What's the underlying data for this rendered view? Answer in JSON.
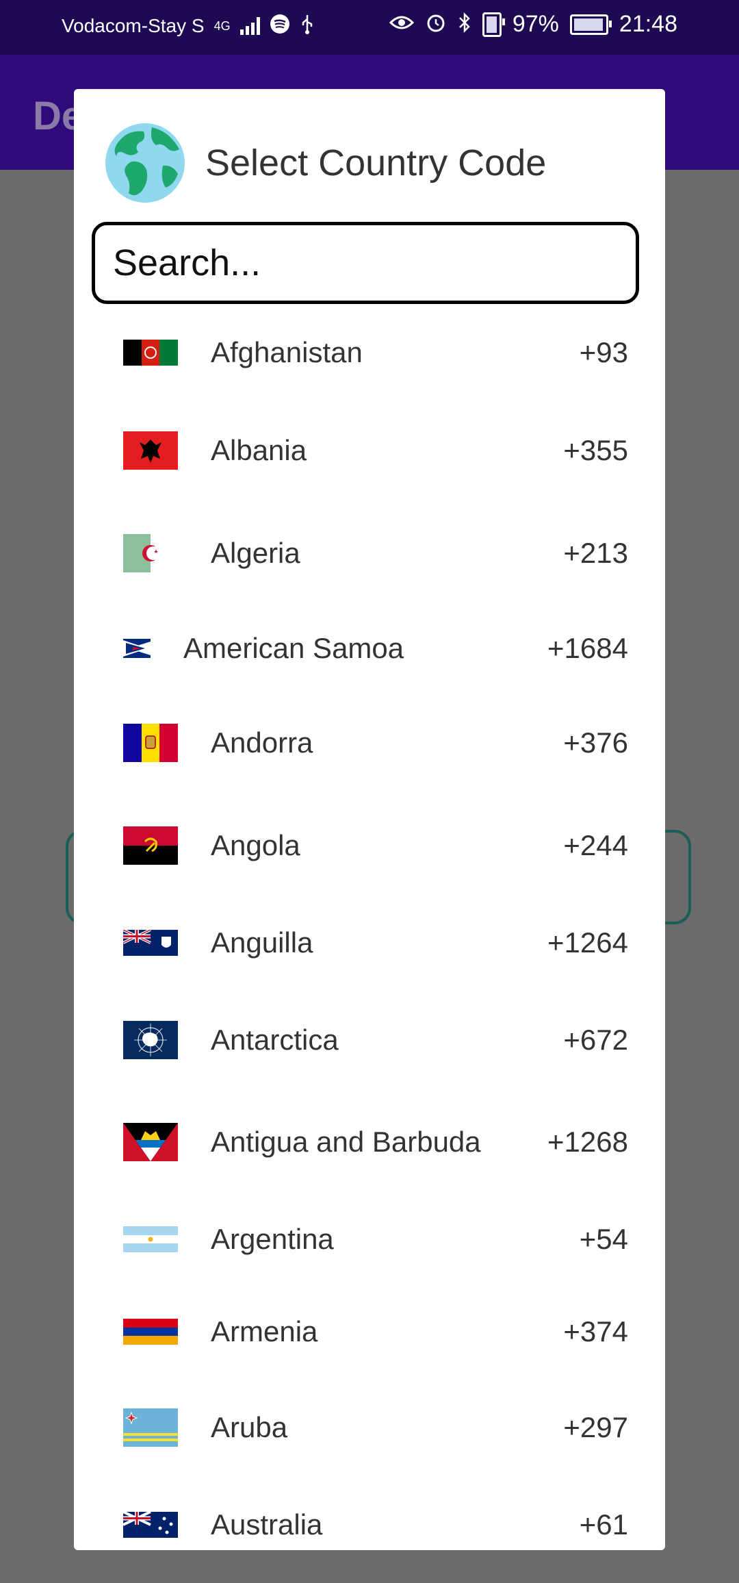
{
  "status_bar": {
    "carrier": "Vodacom-Stay S",
    "network": "4G",
    "battery": "97%",
    "battery_level": 0.97,
    "time": "21:48"
  },
  "background": {
    "appbar_title": "De"
  },
  "dialog": {
    "title": "Select Country Code",
    "search": {
      "placeholder": "Search..."
    },
    "countries": [
      {
        "name": "Afghanistan",
        "code": "+93",
        "flag_icon": "afghanistan-flag-icon"
      },
      {
        "name": "Albania",
        "code": "+355",
        "flag_icon": "albania-flag-icon"
      },
      {
        "name": "Algeria",
        "code": "+213",
        "flag_icon": "algeria-flag-icon"
      },
      {
        "name": "American Samoa",
        "code": "+1684",
        "flag_icon": "american-samoa-flag-icon"
      },
      {
        "name": "Andorra",
        "code": "+376",
        "flag_icon": "andorra-flag-icon"
      },
      {
        "name": "Angola",
        "code": "+244",
        "flag_icon": "angola-flag-icon"
      },
      {
        "name": "Anguilla",
        "code": "+1264",
        "flag_icon": "anguilla-flag-icon"
      },
      {
        "name": "Antarctica",
        "code": "+672",
        "flag_icon": "antarctica-flag-icon"
      },
      {
        "name": "Antigua and Barbuda",
        "code": "+1268",
        "flag_icon": "antigua-barbuda-flag-icon"
      },
      {
        "name": "Argentina",
        "code": "+54",
        "flag_icon": "argentina-flag-icon"
      },
      {
        "name": "Armenia",
        "code": "+374",
        "flag_icon": "armenia-flag-icon"
      },
      {
        "name": "Aruba",
        "code": "+297",
        "flag_icon": "aruba-flag-icon"
      },
      {
        "name": "Australia",
        "code": "+61",
        "flag_icon": "australia-flag-icon"
      }
    ]
  }
}
